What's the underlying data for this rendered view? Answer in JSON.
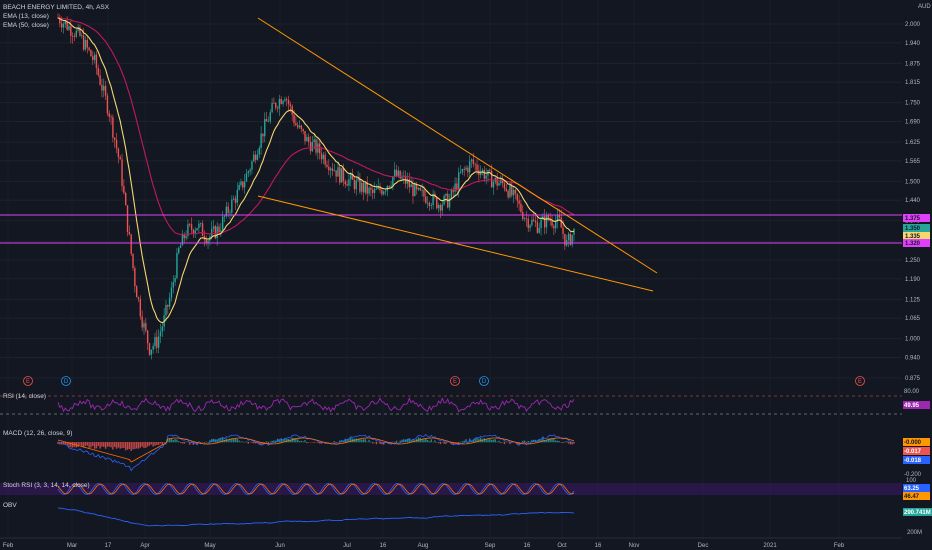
{
  "header": {
    "symbol_line": "BEACH ENERGY LIMITED, 4h, ASX",
    "ema1": "EMA (13, close)",
    "ema2": "EMA (50, close)",
    "currency": "AUD"
  },
  "colors": {
    "background": "#131722",
    "up": "#26a69a",
    "down": "#ef5350",
    "ema13": "#f5d76e",
    "ema50": "#c2185b",
    "trendline": "#ff9800",
    "hline": "#e040fb",
    "rsi": "#9c27b0",
    "obv": "#2962ff"
  },
  "panels": {
    "rsi": {
      "label": "RSI (14, close)",
      "upper": "80.00",
      "value": "49.95"
    },
    "macd": {
      "label": "MACD (12, 26, close, 9)",
      "values": [
        "-0.000",
        "-0.017",
        "-0.018"
      ],
      "lower": "-0.200"
    },
    "stoch": {
      "label": "Stoch RSI (3, 3, 14, 14, close)",
      "top": "100",
      "values": [
        "63.25",
        "46.47"
      ]
    },
    "obv": {
      "label": "OBV",
      "value": "290.741M",
      "lower": "200M"
    }
  },
  "price_badges": [
    {
      "text": "1.375",
      "bg": "#e040fb",
      "fg": "#131722"
    },
    {
      "text": "1.350",
      "bg": "#26a69a",
      "fg": "#131722"
    },
    {
      "text": "1.335",
      "bg": "#f5d76e",
      "fg": "#131722"
    },
    {
      "text": "1.320",
      "bg": "#e040fb",
      "fg": "#131722"
    }
  ],
  "events": [
    {
      "letter": "E",
      "color": "#ef5350"
    },
    {
      "letter": "D",
      "color": "#2196f3"
    },
    {
      "letter": "E",
      "color": "#ef5350"
    },
    {
      "letter": "D",
      "color": "#2196f3"
    },
    {
      "letter": "E",
      "color": "#ef5350"
    }
  ],
  "chart_data": {
    "type": "candlestick",
    "title": "BEACH ENERGY LIMITED, 4h, ASX",
    "y_unit": "AUD",
    "y_ticks": [
      "2.000",
      "1.940",
      "1.875",
      "1.815",
      "1.750",
      "1.690",
      "1.625",
      "1.565",
      "1.500",
      "1.440",
      "1.375",
      "1.310",
      "1.250",
      "1.190",
      "1.125",
      "1.065",
      "1.000",
      "0.940",
      "0.875"
    ],
    "x_ticks": [
      "Feb",
      "Mar",
      "17",
      "Apr",
      "May",
      "Jun",
      "Jul",
      "16",
      "Aug",
      "Sep",
      "16",
      "Oct",
      "16",
      "Nov",
      "Dec",
      "2021",
      "Feb"
    ],
    "horizontal_levels": [
      1.375,
      1.32
    ],
    "last_close": 1.335,
    "approx_price_path": [
      [
        0,
        2.02
      ],
      [
        12,
        1.96
      ],
      [
        20,
        1.88
      ],
      [
        28,
        1.72
      ],
      [
        34,
        1.55
      ],
      [
        38,
        1.36
      ],
      [
        42,
        1.18
      ],
      [
        46,
        1.06
      ],
      [
        50,
        0.97
      ],
      [
        54,
        0.99
      ],
      [
        58,
        1.06
      ],
      [
        62,
        1.15
      ],
      [
        66,
        1.28
      ],
      [
        70,
        1.34
      ],
      [
        76,
        1.36
      ],
      [
        82,
        1.32
      ],
      [
        88,
        1.35
      ],
      [
        94,
        1.42
      ],
      [
        100,
        1.48
      ],
      [
        106,
        1.56
      ],
      [
        112,
        1.66
      ],
      [
        118,
        1.74
      ],
      [
        124,
        1.78
      ],
      [
        130,
        1.68
      ],
      [
        136,
        1.63
      ],
      [
        142,
        1.6
      ],
      [
        148,
        1.56
      ],
      [
        154,
        1.52
      ],
      [
        160,
        1.5
      ],
      [
        166,
        1.48
      ],
      [
        172,
        1.46
      ],
      [
        178,
        1.48
      ],
      [
        184,
        1.52
      ],
      [
        190,
        1.5
      ],
      [
        196,
        1.46
      ],
      [
        202,
        1.45
      ],
      [
        208,
        1.43
      ],
      [
        214,
        1.44
      ],
      [
        220,
        1.52
      ],
      [
        226,
        1.56
      ],
      [
        232,
        1.53
      ],
      [
        238,
        1.5
      ],
      [
        244,
        1.49
      ],
      [
        250,
        1.44
      ],
      [
        256,
        1.38
      ],
      [
        262,
        1.36
      ],
      [
        268,
        1.38
      ],
      [
        274,
        1.37
      ],
      [
        278,
        1.3
      ],
      [
        282,
        1.34
      ]
    ]
  }
}
